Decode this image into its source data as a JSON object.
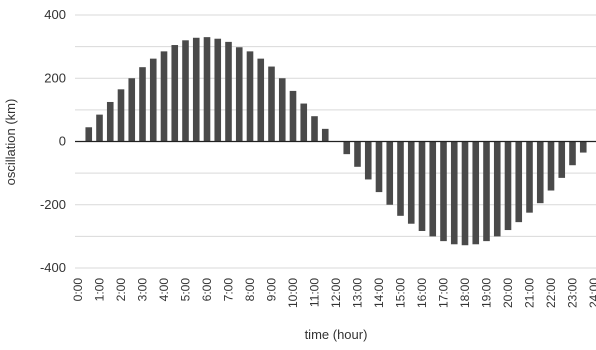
{
  "chart_data": {
    "type": "bar",
    "title": "",
    "xlabel": "time (hour)",
    "ylabel": "oscillation (km)",
    "ylim": [
      -400,
      400
    ],
    "yticks": [
      -400,
      -200,
      0,
      200,
      400
    ],
    "ytick_labels": [
      "-400",
      "-200",
      "0",
      "200",
      "400"
    ],
    "grid": "horizontal",
    "legend": "none",
    "colors": {
      "bar": "#4a4a4a",
      "grid": "#d9d9d9",
      "text": "#333333",
      "axis": "#222222"
    },
    "xrange": [
      0,
      24
    ],
    "xticks": [
      0,
      1,
      2,
      3,
      4,
      5,
      6,
      7,
      8,
      9,
      10,
      11,
      12,
      13,
      14,
      15,
      16,
      17,
      18,
      19,
      20,
      21,
      22,
      23,
      24
    ],
    "xtick_labels": [
      "0:00",
      "1:00",
      "2:00",
      "3:00",
      "4:00",
      "5:00",
      "6:00",
      "7:00",
      "8:00",
      "9:00",
      "10:00",
      "11:00",
      "12:00",
      "13:00",
      "14:00",
      "15:00",
      "16:00",
      "17:00",
      "18:00",
      "19:00",
      "20:00",
      "21:00",
      "22:00",
      "23:00",
      "24:00"
    ],
    "x": [
      0.5,
      1.0,
      1.5,
      2.0,
      2.5,
      3.0,
      3.5,
      4.0,
      4.5,
      5.0,
      5.5,
      6.0,
      6.5,
      7.0,
      7.5,
      8.0,
      8.5,
      9.0,
      9.5,
      10.0,
      10.5,
      11.0,
      11.5,
      12.5,
      13.0,
      13.5,
      14.0,
      14.5,
      15.0,
      15.5,
      16.0,
      16.5,
      17.0,
      17.5,
      18.0,
      18.5,
      19.0,
      19.5,
      20.0,
      20.5,
      21.0,
      21.5,
      22.0,
      22.5,
      23.0,
      23.5
    ],
    "values": [
      45,
      85,
      125,
      165,
      200,
      235,
      262,
      285,
      305,
      320,
      328,
      330,
      325,
      315,
      298,
      285,
      262,
      237,
      200,
      160,
      120,
      80,
      40,
      -40,
      -80,
      -120,
      -160,
      -200,
      -235,
      -260,
      -283,
      -300,
      -315,
      -325,
      -328,
      -325,
      -315,
      -300,
      -280,
      -255,
      -225,
      -195,
      -155,
      -115,
      -75,
      -35
    ]
  }
}
